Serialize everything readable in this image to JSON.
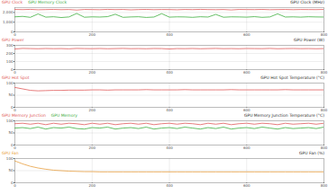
{
  "chart_data": [
    {
      "type": "line",
      "title": "GPU Clock (MHz)",
      "grid": true,
      "xlim": [
        0,
        800
      ],
      "xticks": [
        0,
        200,
        400,
        600,
        800
      ],
      "ylim": [
        0,
        2500
      ],
      "yticks": [
        0,
        1000,
        2000
      ],
      "x": [
        0,
        20,
        40,
        60,
        80,
        100,
        120,
        140,
        160,
        180,
        200,
        220,
        240,
        260,
        280,
        300,
        320,
        340,
        360,
        380,
        400,
        420,
        440,
        460,
        480,
        500,
        520,
        540,
        560,
        580,
        600,
        620,
        640,
        660,
        680,
        700,
        720,
        740,
        760,
        780,
        800
      ],
      "series": [
        {
          "name": "GPU Clock",
          "color": "#e05a5a",
          "values": [
            2310,
            2295,
            2320,
            2280,
            2300,
            2315,
            2290,
            2305,
            2250,
            2310,
            2300,
            2285,
            2320,
            2295,
            2310,
            2270,
            2300,
            2315,
            2290,
            2305,
            2300,
            2280,
            2310,
            2295,
            2320,
            2300,
            2290,
            2305,
            2260,
            2310,
            2300,
            2295,
            2315,
            2285,
            2300,
            2310,
            2290,
            2305,
            2300,
            2295,
            2310
          ]
        },
        {
          "name": "GPU Memory Clock",
          "color": "#3fae3f",
          "values": [
            1550,
            1600,
            1500,
            1850,
            1520,
            1560,
            1480,
            1540,
            1900,
            1510,
            1550,
            1530,
            1570,
            1820,
            1500,
            1540,
            1560,
            1490,
            1530,
            1880,
            1520,
            1550,
            1540,
            1500,
            1560,
            1530,
            1800,
            1510,
            1550,
            1540,
            1520,
            1570,
            1500,
            1540,
            1860,
            1530,
            1550,
            1520,
            1560,
            1540,
            1530
          ]
        }
      ]
    },
    {
      "type": "line",
      "title": "GPU Power (W)",
      "grid": true,
      "xlim": [
        0,
        800
      ],
      "xticks": [
        0,
        200,
        400,
        600,
        800
      ],
      "ylim": [
        0,
        300
      ],
      "yticks": [
        0,
        100,
        200,
        300
      ],
      "x": [
        0,
        20,
        40,
        60,
        80,
        100,
        120,
        140,
        160,
        180,
        200,
        220,
        240,
        260,
        280,
        300,
        320,
        340,
        360,
        380,
        400,
        420,
        440,
        460,
        480,
        500,
        520,
        540,
        560,
        580,
        600,
        620,
        640,
        660,
        680,
        700,
        720,
        740,
        760,
        780,
        800
      ],
      "series": [
        {
          "name": "GPU Power",
          "color": "#e05a5a",
          "values": [
            255,
            262,
            260,
            258,
            261,
            259,
            260,
            257,
            262,
            260,
            259,
            261,
            258,
            260,
            262,
            259,
            260,
            258,
            261,
            260,
            255,
            260,
            259,
            261,
            258,
            260,
            262,
            259,
            260,
            258,
            261,
            260,
            259,
            262,
            258,
            260,
            261,
            259,
            260,
            258,
            260
          ]
        }
      ]
    },
    {
      "type": "line",
      "title": "GPU Hot Spot Temperature (°C)",
      "grid": true,
      "xlim": [
        0,
        800
      ],
      "xticks": [
        0,
        200,
        400,
        600,
        800
      ],
      "ylim": [
        0,
        100
      ],
      "yticks": [
        0,
        50,
        100
      ],
      "x": [
        0,
        20,
        40,
        60,
        80,
        100,
        120,
        140,
        160,
        180,
        200,
        220,
        240,
        260,
        280,
        300,
        320,
        340,
        360,
        380,
        400,
        420,
        440,
        460,
        480,
        500,
        520,
        540,
        560,
        580,
        600,
        620,
        640,
        660,
        680,
        700,
        720,
        740,
        760,
        780,
        800
      ],
      "series": [
        {
          "name": "GPU Hot Spot",
          "color": "#e05a5a",
          "values": [
            82,
            76,
            70,
            68,
            69,
            70,
            70,
            71,
            71,
            71,
            72,
            72,
            71,
            72,
            72,
            72,
            72,
            73,
            72,
            72,
            72,
            72,
            73,
            72,
            72,
            72,
            72,
            72,
            73,
            72,
            72,
            72,
            72,
            72,
            72,
            73,
            72,
            72,
            72,
            72,
            72
          ]
        }
      ]
    },
    {
      "type": "line",
      "title": "GPU Memory Junction Temperature (°C)",
      "grid": true,
      "xlim": [
        0,
        800
      ],
      "xticks": [
        0,
        200,
        400,
        600,
        800
      ],
      "ylim": [
        0,
        100
      ],
      "yticks": [
        0,
        50,
        100
      ],
      "x": [
        0,
        20,
        40,
        60,
        80,
        100,
        120,
        140,
        160,
        180,
        200,
        220,
        240,
        260,
        280,
        300,
        320,
        340,
        360,
        380,
        400,
        420,
        440,
        460,
        480,
        500,
        520,
        540,
        560,
        580,
        600,
        620,
        640,
        660,
        680,
        700,
        720,
        740,
        760,
        780,
        800
      ],
      "series": [
        {
          "name": "GPU Memory Junction",
          "color": "#e05a5a",
          "values": [
            88,
            90,
            86,
            90,
            84,
            90,
            86,
            90,
            88,
            84,
            90,
            86,
            90,
            84,
            88,
            90,
            86,
            90,
            84,
            88,
            90,
            86,
            90,
            88,
            84,
            90,
            86,
            90,
            84,
            88,
            90,
            86,
            90,
            88,
            84,
            90,
            86,
            88,
            90,
            86,
            90
          ]
        },
        {
          "name": "GPU Memory",
          "color": "#3fae3f",
          "values": [
            70,
            72,
            68,
            74,
            66,
            72,
            70,
            74,
            68,
            66,
            72,
            70,
            74,
            66,
            70,
            72,
            68,
            74,
            66,
            70,
            72,
            68,
            74,
            70,
            66,
            72,
            68,
            74,
            66,
            70,
            72,
            68,
            74,
            70,
            66,
            72,
            68,
            70,
            72,
            68,
            74
          ]
        }
      ]
    },
    {
      "type": "line",
      "title": "GPU Fan (%)",
      "grid": true,
      "xlim": [
        0,
        800
      ],
      "xticks": [
        0,
        200,
        400,
        600,
        800
      ],
      "ylim": [
        0,
        100
      ],
      "yticks": [
        0,
        50,
        100
      ],
      "x": [
        0,
        20,
        40,
        60,
        80,
        100,
        120,
        140,
        160,
        180,
        200,
        220,
        240,
        260,
        280,
        300,
        320,
        340,
        360,
        380,
        400,
        420,
        440,
        460,
        480,
        500,
        520,
        540,
        560,
        580,
        600,
        620,
        640,
        660,
        680,
        700,
        720,
        740,
        760,
        780,
        800
      ],
      "series": [
        {
          "name": "GPU Fan",
          "color": "#e8a040",
          "values": [
            90,
            78,
            68,
            61,
            56,
            52,
            50,
            48,
            47,
            46,
            46,
            45,
            45,
            45,
            45,
            45,
            45,
            45,
            45,
            45,
            45,
            45,
            45,
            45,
            45,
            45,
            45,
            45,
            45,
            45,
            45,
            45,
            45,
            45,
            45,
            45,
            45,
            45,
            45,
            45,
            45
          ]
        }
      ]
    }
  ]
}
